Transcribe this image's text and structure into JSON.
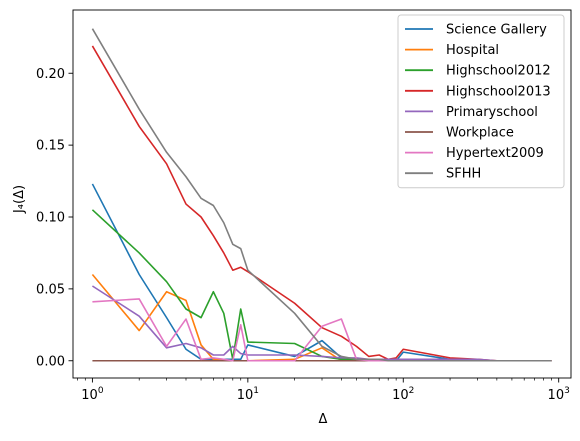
{
  "chart_data": {
    "type": "line",
    "xlabel": "Δ",
    "ylabel": "J₄(Δ)",
    "xscale": "log",
    "xlim": [
      0.75,
      1200
    ],
    "ylim": [
      -0.012,
      0.244
    ],
    "x_ticks": [
      {
        "value": 1,
        "base": "10",
        "exp": "0"
      },
      {
        "value": 10,
        "base": "10",
        "exp": "1"
      },
      {
        "value": 100,
        "base": "10",
        "exp": "2"
      },
      {
        "value": 1000,
        "base": "10",
        "exp": "3"
      }
    ],
    "y_ticks": [
      {
        "value": 0.0,
        "label": "0.00"
      },
      {
        "value": 0.05,
        "label": "0.05"
      },
      {
        "value": 0.1,
        "label": "0.10"
      },
      {
        "value": 0.15,
        "label": "0.15"
      },
      {
        "value": 0.2,
        "label": "0.20"
      }
    ],
    "legend_position": "top-right",
    "series": [
      {
        "name": "Science Gallery",
        "color": "#1f77b4",
        "x": [
          1,
          2,
          3,
          4,
          5,
          6,
          7,
          8,
          9,
          10,
          20,
          30,
          40,
          50,
          60,
          70,
          80,
          90,
          100,
          200,
          300,
          400,
          500,
          600,
          700,
          800,
          900
        ],
        "y": [
          0.123,
          0.06,
          0.03,
          0.008,
          0.001,
          0.001,
          0.001,
          0.001,
          0.001,
          0.011,
          0.003,
          0.014,
          0.002,
          0.001,
          0.001,
          0.0,
          0.0,
          0.0,
          0.006,
          0.001,
          0.0,
          0.0,
          0.0,
          0.0,
          0.0,
          0.0,
          0.0
        ]
      },
      {
        "name": "Hospital",
        "color": "#ff7f0e",
        "x": [
          1,
          2,
          3,
          4,
          5,
          6,
          7,
          8,
          9,
          10,
          20,
          30,
          40,
          50,
          60,
          70,
          80,
          90,
          100,
          200,
          300,
          400,
          500,
          600,
          700,
          800,
          900
        ],
        "y": [
          0.06,
          0.021,
          0.048,
          0.042,
          0.011,
          0.001,
          0.0,
          0.0,
          0.0,
          0.0,
          0.001,
          0.009,
          0.0,
          0.0,
          0.0,
          0.0,
          0.0,
          0.0,
          0.0,
          0.0,
          0.0,
          0.0,
          0.0,
          0.0,
          0.0,
          0.0,
          0.0
        ]
      },
      {
        "name": "Highschool2012",
        "color": "#2ca02c",
        "x": [
          1,
          2,
          3,
          4,
          5,
          6,
          7,
          8,
          9,
          10,
          20,
          30,
          40,
          50,
          60,
          70,
          80,
          90,
          100,
          200,
          300,
          400,
          500,
          600,
          700,
          800,
          900
        ],
        "y": [
          0.105,
          0.075,
          0.055,
          0.036,
          0.03,
          0.048,
          0.033,
          0.001,
          0.036,
          0.013,
          0.012,
          0.003,
          0.001,
          0.001,
          0.0,
          0.0,
          0.0,
          0.0,
          0.0,
          0.0,
          0.0,
          0.0,
          0.0,
          0.0,
          0.0,
          0.0,
          0.0
        ]
      },
      {
        "name": "Highschool2013",
        "color": "#d62728",
        "x": [
          1,
          2,
          3,
          4,
          5,
          6,
          7,
          8,
          9,
          10,
          20,
          30,
          40,
          50,
          60,
          70,
          80,
          90,
          100,
          200,
          300,
          400,
          500,
          600,
          700,
          800,
          900
        ],
        "y": [
          0.219,
          0.163,
          0.137,
          0.109,
          0.1,
          0.087,
          0.075,
          0.063,
          0.065,
          0.062,
          0.04,
          0.023,
          0.017,
          0.01,
          0.003,
          0.004,
          0.001,
          0.002,
          0.008,
          0.002,
          0.001,
          0.0,
          0.0,
          0.0,
          0.0,
          0.0,
          0.0
        ]
      },
      {
        "name": "Primaryschool",
        "color": "#9467bd",
        "x": [
          1,
          2,
          3,
          4,
          5,
          6,
          7,
          8,
          9,
          10,
          20,
          30,
          40,
          50,
          60,
          70,
          80,
          90,
          100,
          200,
          300,
          400,
          500,
          600,
          700,
          800,
          900
        ],
        "y": [
          0.052,
          0.031,
          0.009,
          0.012,
          0.009,
          0.004,
          0.004,
          0.01,
          0.005,
          0.004,
          0.004,
          0.003,
          0.002,
          0.002,
          0.001,
          0.001,
          0.001,
          0.001,
          0.001,
          0.001,
          0.001,
          0.0,
          0.0,
          0.0,
          0.0,
          0.0,
          0.0
        ]
      },
      {
        "name": "Workplace",
        "color": "#8c564b",
        "x": [
          1,
          2,
          3,
          4,
          5,
          6,
          7,
          8,
          9,
          10,
          20,
          30,
          40,
          50,
          60,
          70,
          80,
          90,
          100,
          200,
          300,
          400,
          500,
          600,
          700,
          800,
          900
        ],
        "y": [
          0.0,
          0.0,
          0.0,
          0.0,
          0.0,
          0.0,
          0.0,
          0.0,
          0.0,
          0.0,
          0.0,
          0.0,
          0.0,
          0.0,
          0.0,
          0.0,
          0.0,
          0.0,
          0.0,
          0.0,
          0.0,
          0.0,
          0.0,
          0.0,
          0.0,
          0.0,
          0.0
        ]
      },
      {
        "name": "Hypertext2009",
        "color": "#e377c2",
        "x": [
          1,
          2,
          3,
          4,
          5,
          6,
          7,
          8,
          9,
          10,
          20,
          30,
          40,
          50,
          60,
          70,
          80,
          90,
          100,
          200,
          300,
          400,
          500,
          600,
          700,
          800,
          900
        ],
        "y": [
          0.041,
          0.043,
          0.01,
          0.029,
          0.001,
          0.002,
          0.001,
          0.0,
          0.025,
          0.0,
          0.0,
          0.024,
          0.029,
          0.001,
          0.0,
          0.0,
          0.0,
          0.0,
          0.0,
          0.0,
          0.0,
          0.0,
          0.0,
          0.0,
          0.0,
          0.0,
          0.0
        ]
      },
      {
        "name": "SFHH",
        "color": "#7f7f7f",
        "x": [
          1,
          2,
          3,
          4,
          5,
          6,
          7,
          8,
          9,
          10,
          20,
          30,
          40,
          50,
          60,
          70,
          80,
          90,
          100,
          200,
          300,
          400,
          500,
          600,
          700,
          800,
          900
        ],
        "y": [
          0.231,
          0.175,
          0.145,
          0.128,
          0.113,
          0.108,
          0.096,
          0.081,
          0.078,
          0.063,
          0.033,
          0.01,
          0.003,
          0.001,
          0.001,
          0.001,
          0.0,
          0.0,
          0.0,
          0.0,
          0.0,
          0.0,
          0.0,
          0.0,
          0.0,
          0.0,
          0.0
        ]
      }
    ]
  }
}
